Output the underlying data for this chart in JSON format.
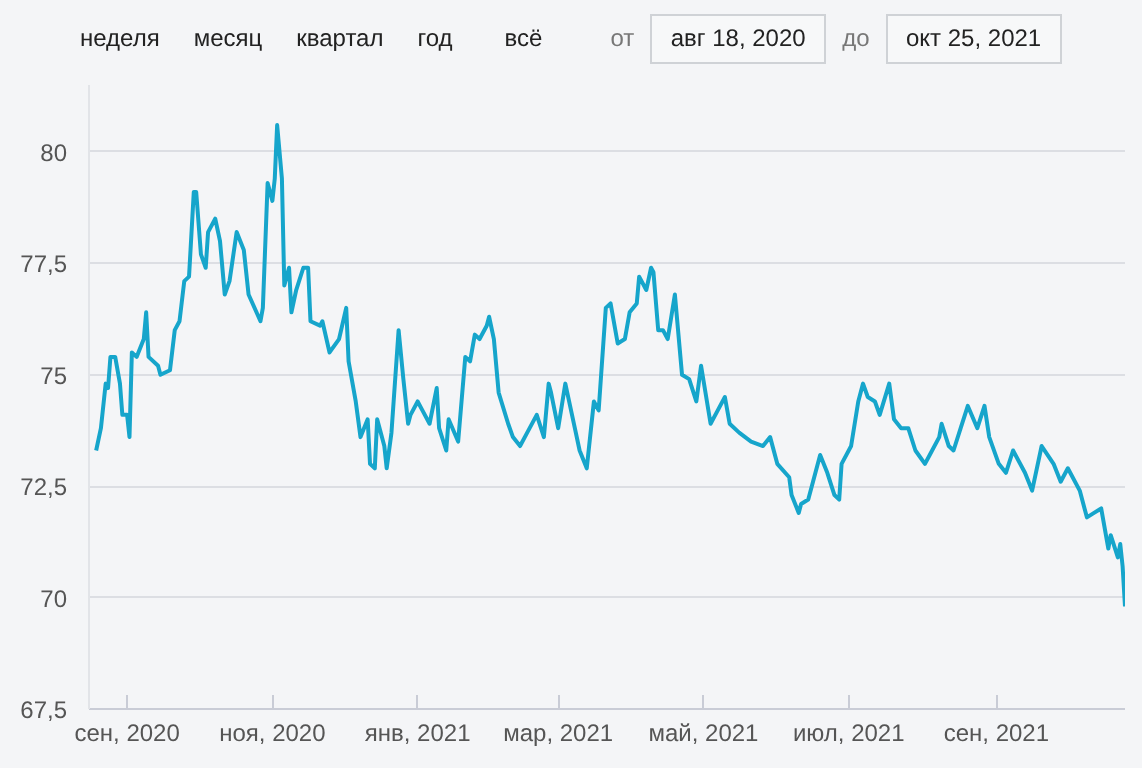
{
  "chart_data": {
    "type": "line",
    "annotations": [
      "неделя",
      "месяц",
      "квартал",
      "год",
      "всё",
      "от",
      "авг 18, 2020",
      "до",
      "окт 25, 2021"
    ],
    "x": [
      "2020-08-19",
      "2020-08-21",
      "2020-08-23",
      "2020-08-24",
      "2020-08-25",
      "2020-08-27",
      "2020-08-29",
      "2020-08-30",
      "2020-09-01",
      "2020-09-02",
      "2020-09-03",
      "2020-09-05",
      "2020-09-08",
      "2020-09-09",
      "2020-09-10",
      "2020-09-14",
      "2020-09-15",
      "2020-09-19",
      "2020-09-21",
      "2020-09-23",
      "2020-09-25",
      "2020-09-27",
      "2020-09-29",
      "2020-09-30",
      "2020-10-02",
      "2020-10-04",
      "2020-10-05",
      "2020-10-06",
      "2020-10-08",
      "2020-10-10",
      "2020-10-12",
      "2020-10-14",
      "2020-10-17",
      "2020-10-20",
      "2020-10-22",
      "2020-10-27",
      "2020-10-28",
      "2020-10-30",
      "2020-11-01",
      "2020-11-02",
      "2020-11-03",
      "2020-11-05",
      "2020-11-06",
      "2020-11-08",
      "2020-11-09",
      "2020-11-11",
      "2020-11-14",
      "2020-11-16",
      "2020-11-17",
      "2020-11-21",
      "2020-11-22",
      "2020-11-25",
      "2020-11-29",
      "2020-12-02",
      "2020-12-03",
      "2020-12-06",
      "2020-12-08",
      "2020-12-11",
      "2020-12-12",
      "2020-12-14",
      "2020-12-15",
      "2020-12-18",
      "2020-12-19",
      "2020-12-21",
      "2020-12-24",
      "2020-12-26",
      "2020-12-28",
      "2020-12-29",
      "2021-01-01",
      "2021-01-03",
      "2021-01-06",
      "2021-01-09",
      "2021-01-10",
      "2021-01-13",
      "2021-01-14",
      "2021-01-18",
      "2021-01-21",
      "2021-01-23",
      "2021-01-25",
      "2021-01-27",
      "2021-01-30",
      "2021-01-31",
      "2021-02-02",
      "2021-02-04",
      "2021-02-08",
      "2021-02-10",
      "2021-02-13",
      "2021-02-16",
      "2021-02-20",
      "2021-02-23",
      "2021-02-25",
      "2021-02-26",
      "2021-03-01",
      "2021-03-04",
      "2021-03-08",
      "2021-03-10",
      "2021-03-13",
      "2021-03-16",
      "2021-03-18",
      "2021-03-21",
      "2021-03-23",
      "2021-03-26",
      "2021-03-29",
      "2021-03-31",
      "2021-04-03",
      "2021-04-04",
      "2021-04-07",
      "2021-04-09",
      "2021-04-10",
      "2021-04-12",
      "2021-04-14",
      "2021-04-16",
      "2021-04-19",
      "2021-04-22",
      "2021-04-25",
      "2021-04-28",
      "2021-04-30",
      "2021-05-04",
      "2021-05-07",
      "2021-05-10",
      "2021-05-12",
      "2021-05-16",
      "2021-05-21",
      "2021-05-26",
      "2021-05-29",
      "2021-06-01",
      "2021-06-06",
      "2021-06-07",
      "2021-06-10",
      "2021-06-11",
      "2021-06-14",
      "2021-06-16",
      "2021-06-19",
      "2021-06-22",
      "2021-06-25",
      "2021-06-27",
      "2021-06-28",
      "2021-07-02",
      "2021-07-05",
      "2021-07-07",
      "2021-07-09",
      "2021-07-12",
      "2021-07-14",
      "2021-07-18",
      "2021-07-20",
      "2021-07-23",
      "2021-07-26",
      "2021-07-29",
      "2021-08-02",
      "2021-08-04",
      "2021-08-08",
      "2021-08-09",
      "2021-08-12",
      "2021-08-14",
      "2021-08-17",
      "2021-08-20",
      "2021-08-24",
      "2021-08-27",
      "2021-08-29",
      "2021-09-02",
      "2021-09-05",
      "2021-09-08",
      "2021-09-13",
      "2021-09-16",
      "2021-09-20",
      "2021-09-25",
      "2021-09-28",
      "2021-10-01",
      "2021-10-06",
      "2021-10-09",
      "2021-10-12",
      "2021-10-15",
      "2021-10-18",
      "2021-10-19",
      "2021-10-22",
      "2021-10-23",
      "2021-10-24",
      "2021-10-25"
    ],
    "series": [
      {
        "color": "#16a5cb",
        "values": [
          73.3,
          73.8,
          74.8,
          74.7,
          75.4,
          75.4,
          74.8,
          74.1,
          74.1,
          73.6,
          75.5,
          75.4,
          75.8,
          76.4,
          75.4,
          75.2,
          75.0,
          75.1,
          76.0,
          76.2,
          77.1,
          77.2,
          79.1,
          79.1,
          77.7,
          77.4,
          78.2,
          78.3,
          78.5,
          78.0,
          76.8,
          77.1,
          78.2,
          77.8,
          76.8,
          76.2,
          76.5,
          79.3,
          78.9,
          79.4,
          80.6,
          79.4,
          77.0,
          77.4,
          76.4,
          76.9,
          77.4,
          77.4,
          76.2,
          76.1,
          76.2,
          75.5,
          75.8,
          76.5,
          75.3,
          74.4,
          73.6,
          74.0,
          73.0,
          72.9,
          74.0,
          73.4,
          72.9,
          73.7,
          76.0,
          74.9,
          73.9,
          74.1,
          74.4,
          74.2,
          73.9,
          74.7,
          73.8,
          73.3,
          74.0,
          73.5,
          75.4,
          75.3,
          75.9,
          75.8,
          76.1,
          76.3,
          75.8,
          74.6,
          73.9,
          73.6,
          73.4,
          73.7,
          74.1,
          73.6,
          74.8,
          74.6,
          73.8,
          74.8,
          73.8,
          73.3,
          72.9,
          74.4,
          74.2,
          76.5,
          76.6,
          75.7,
          75.8,
          76.4,
          76.6,
          77.2,
          76.9,
          77.4,
          77.3,
          76.0,
          76.0,
          75.8,
          76.8,
          75.0,
          74.9,
          74.4,
          75.2,
          73.9,
          74.2,
          74.5,
          73.9,
          73.7,
          73.5,
          73.4,
          73.6,
          73.0,
          72.7,
          72.3,
          71.9,
          72.1,
          72.2,
          72.6,
          73.2,
          72.8,
          72.3,
          72.2,
          73.0,
          73.4,
          74.4,
          74.8,
          74.5,
          74.4,
          74.1,
          74.8,
          74.0,
          73.8,
          73.8,
          73.3,
          73.0,
          73.2,
          73.6,
          73.9,
          73.4,
          73.3,
          73.8,
          74.3,
          73.8,
          74.3,
          73.6,
          73.0,
          72.8,
          73.3,
          72.8,
          72.4,
          73.4,
          73.0,
          72.6,
          72.9,
          72.4,
          71.8,
          71.9,
          72.0,
          71.1,
          71.4,
          70.9,
          71.2,
          70.7,
          69.8
        ]
      }
    ],
    "xlim": [
      "2020-08-16",
      "2021-10-25"
    ],
    "xticks": [
      {
        "value": "2020-09-01",
        "label": "сен, 2020"
      },
      {
        "value": "2020-11-01",
        "label": "ноя, 2020"
      },
      {
        "value": "2021-01-01",
        "label": "янв, 2021"
      },
      {
        "value": "2021-03-01",
        "label": "мар, 2021"
      },
      {
        "value": "2021-05-01",
        "label": "май, 2021"
      },
      {
        "value": "2021-07-01",
        "label": "июл, 2021"
      },
      {
        "value": "2021-09-01",
        "label": "сен, 2021"
      }
    ],
    "ylim": [
      67.5,
      81.5
    ],
    "yticks": [
      {
        "value": 67.5,
        "label": "67,5"
      },
      70,
      {
        "value": 72.5,
        "label": "72,5"
      },
      75,
      {
        "value": 77.5,
        "label": "77,5"
      },
      80
    ],
    "grid": "y",
    "marker": "none",
    "line_style": "solid"
  }
}
